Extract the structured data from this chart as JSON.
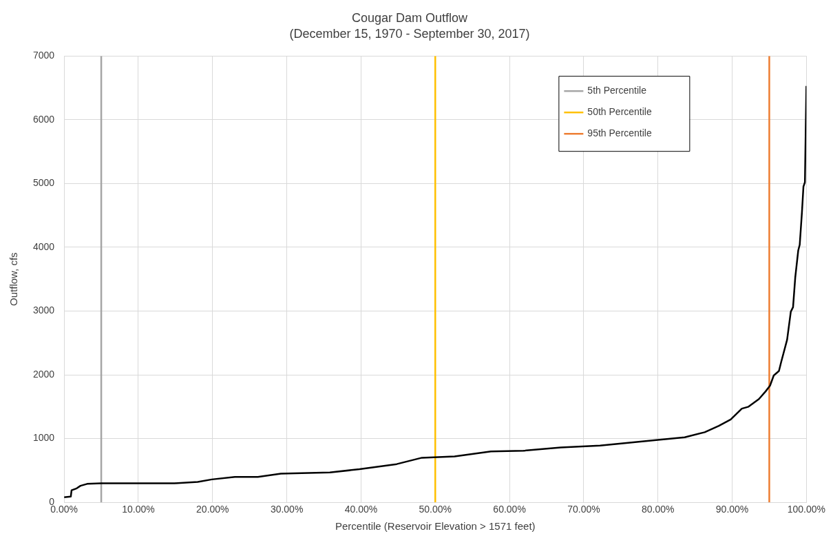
{
  "chart_data": {
    "type": "line",
    "title": "Cougar Dam Outflow",
    "subtitle": "(December 15, 1970 - September 30, 2017)",
    "xlabel": "Percentile (Reservoir Elevation > 1571 feet)",
    "ylabel": "Outflow, cfs",
    "xlim": [
      0,
      100
    ],
    "xticks": [
      {
        "value": 0,
        "label": "0.00%"
      },
      {
        "value": 10,
        "label": "10.00%"
      },
      {
        "value": 20,
        "label": "20.00%"
      },
      {
        "value": 30,
        "label": "30.00%"
      },
      {
        "value": 40,
        "label": "40.00%"
      },
      {
        "value": 50,
        "label": "50.00%"
      },
      {
        "value": 60,
        "label": "60.00%"
      },
      {
        "value": 70,
        "label": "70.00%"
      },
      {
        "value": 80,
        "label": "80.00%"
      },
      {
        "value": 90,
        "label": "90.00%"
      },
      {
        "value": 100,
        "label": "100.00%"
      }
    ],
    "ylim": [
      0,
      7000
    ],
    "yticks": [
      0,
      1000,
      2000,
      3000,
      4000,
      5000,
      6000,
      7000
    ],
    "grid": true,
    "legend": "top right",
    "marker": "none",
    "line_style": "solid",
    "series": [
      {
        "color": "#000000",
        "x": [
          0,
          0.9,
          1.0,
          1.7,
          2.2,
          3.1,
          5.0,
          14.9,
          18.0,
          19.9,
          23.0,
          26.1,
          29.2,
          35.8,
          39.8,
          44.8,
          48.2,
          52.6,
          57.5,
          61.9,
          66.9,
          72.2,
          80,
          83.6,
          86.3,
          88.2,
          89.8,
          91.3,
          92.2,
          93.6,
          94.5,
          95.1,
          95.6,
          96.3,
          96.6,
          97.4,
          97.9,
          98.2,
          98.5,
          98.9,
          99.1,
          99.4,
          99.6,
          99.8,
          100
        ],
        "values": [
          80,
          90,
          190,
          220,
          260,
          290,
          300,
          300,
          320,
          360,
          400,
          400,
          450,
          470,
          520,
          600,
          700,
          720,
          800,
          810,
          860,
          890,
          980,
          1020,
          1100,
          1200,
          1300,
          1470,
          1500,
          1620,
          1740,
          1830,
          1990,
          2060,
          2200,
          2550,
          2990,
          3060,
          3530,
          3950,
          4040,
          4550,
          4950,
          5020,
          6530
        ]
      },
      {
        "name": "5th Percentile",
        "color": "#a5a5a5",
        "x": [
          5,
          5
        ],
        "values": [
          0,
          7000
        ]
      },
      {
        "name": "50th Percentile",
        "color": "#ffc000",
        "x": [
          50,
          50
        ],
        "values": [
          0,
          7000
        ]
      },
      {
        "name": "95th Percentile",
        "color": "#ed7d31",
        "x": [
          95,
          95
        ],
        "values": [
          0,
          7000
        ]
      }
    ]
  }
}
